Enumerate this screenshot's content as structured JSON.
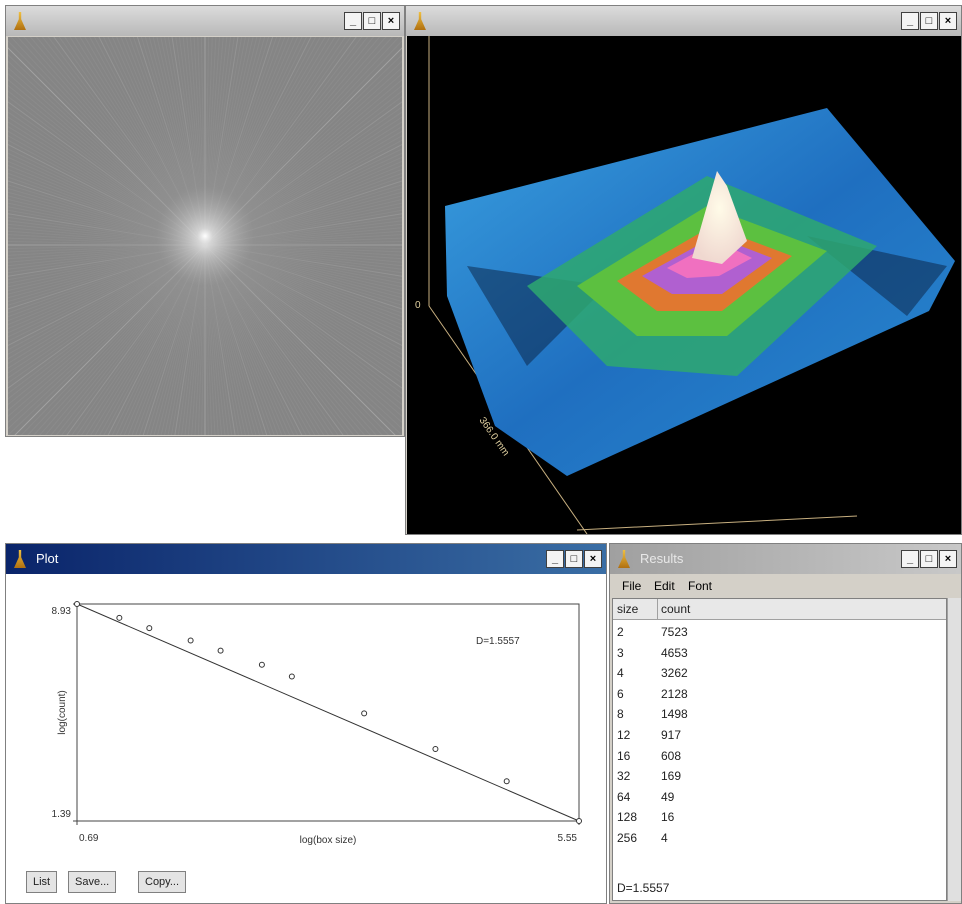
{
  "windows": {
    "surface": {
      "axis_labels": [
        "0",
        "366.0 mm"
      ]
    },
    "plot": {
      "title": "Plot",
      "chart_data": {
        "type": "scatter",
        "xlabel": "log(box size)",
        "ylabel": "log(count)",
        "annotation": "D=1.5557",
        "x": [
          0.69,
          1.1,
          1.39,
          1.79,
          2.08,
          2.48,
          2.77,
          3.47,
          4.16,
          4.85,
          5.55
        ],
        "values": [
          8.93,
          8.45,
          8.09,
          7.66,
          7.31,
          6.82,
          6.41,
          5.13,
          3.89,
          2.77,
          1.39
        ],
        "fit": {
          "x": [
            0.69,
            5.55
          ],
          "values": [
            8.93,
            1.39
          ]
        },
        "xlim": [
          0.69,
          5.55
        ],
        "ylim": [
          1.39,
          8.93
        ],
        "xticks": [
          0.69,
          5.55
        ],
        "yticks": [
          1.39,
          8.93
        ]
      },
      "buttons": [
        "List",
        "Save...",
        "Copy..."
      ]
    },
    "results": {
      "title": "Results",
      "menu": [
        "File",
        "Edit",
        "Font"
      ],
      "columns": [
        "size",
        "count"
      ],
      "rows": [
        [
          2,
          7523
        ],
        [
          3,
          4653
        ],
        [
          4,
          3262
        ],
        [
          6,
          2128
        ],
        [
          8,
          1498
        ],
        [
          12,
          917
        ],
        [
          16,
          608
        ],
        [
          32,
          169
        ],
        [
          64,
          49
        ],
        [
          128,
          16
        ],
        [
          256,
          4
        ]
      ],
      "footer": "D=1.5557"
    }
  }
}
